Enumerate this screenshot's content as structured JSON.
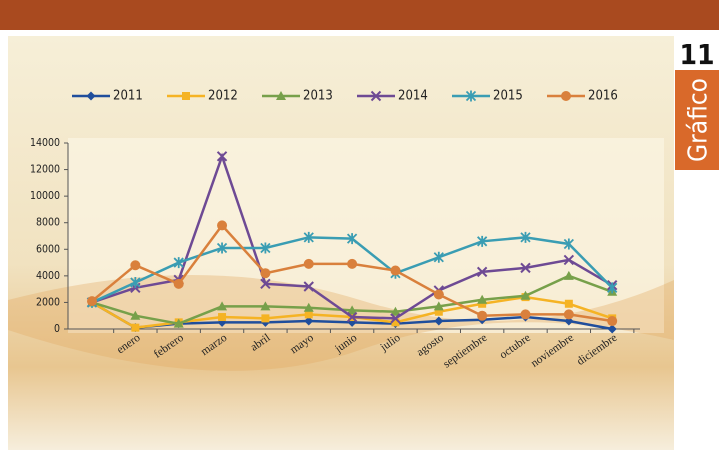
{
  "chart_data": {
    "type": "line",
    "badge": {
      "number": "11",
      "label": "Gráfico"
    },
    "categories": [
      null,
      "enero",
      "febrero",
      "marzo",
      "abril",
      "mayo",
      "junio",
      "julio",
      "agosto",
      "septiembre",
      "octubre",
      "noviembre",
      "diciembre"
    ],
    "series": [
      {
        "name": "2011",
        "color": "#1f4e9c",
        "marker": "diamond",
        "values": [
          2000,
          100,
          400,
          500,
          500,
          600,
          500,
          400,
          600,
          700,
          900,
          600,
          0
        ]
      },
      {
        "name": "2012",
        "color": "#f5b324",
        "marker": "square",
        "values": [
          2000,
          100,
          500,
          900,
          800,
          1100,
          900,
          500,
          1300,
          1900,
          2400,
          1900,
          800
        ]
      },
      {
        "name": "2013",
        "color": "#77a04a",
        "marker": "triangle",
        "values": [
          2000,
          1000,
          400,
          1700,
          1700,
          1600,
          1400,
          1300,
          1700,
          2200,
          2500,
          4000,
          2800
        ]
      },
      {
        "name": "2014",
        "color": "#6e4a94",
        "marker": "x",
        "values": [
          2000,
          3100,
          3700,
          13000,
          3400,
          3200,
          900,
          800,
          2900,
          4300,
          4600,
          5200,
          3300
        ]
      },
      {
        "name": "2015",
        "color": "#3a9db3",
        "marker": "star",
        "values": [
          2000,
          3500,
          5000,
          6100,
          6100,
          6900,
          6800,
          4200,
          5400,
          6600,
          6900,
          6400,
          3100
        ]
      },
      {
        "name": "2016",
        "color": "#d9803c",
        "marker": "circle",
        "values": [
          2100,
          4800,
          3400,
          7800,
          4200,
          4900,
          4900,
          4400,
          2600,
          1000,
          1100,
          1100,
          600
        ]
      }
    ],
    "ylim": [
      0,
      14000
    ],
    "yticks": [
      0,
      2000,
      4000,
      6000,
      8000,
      10000,
      12000,
      14000
    ],
    "grid": false
  }
}
